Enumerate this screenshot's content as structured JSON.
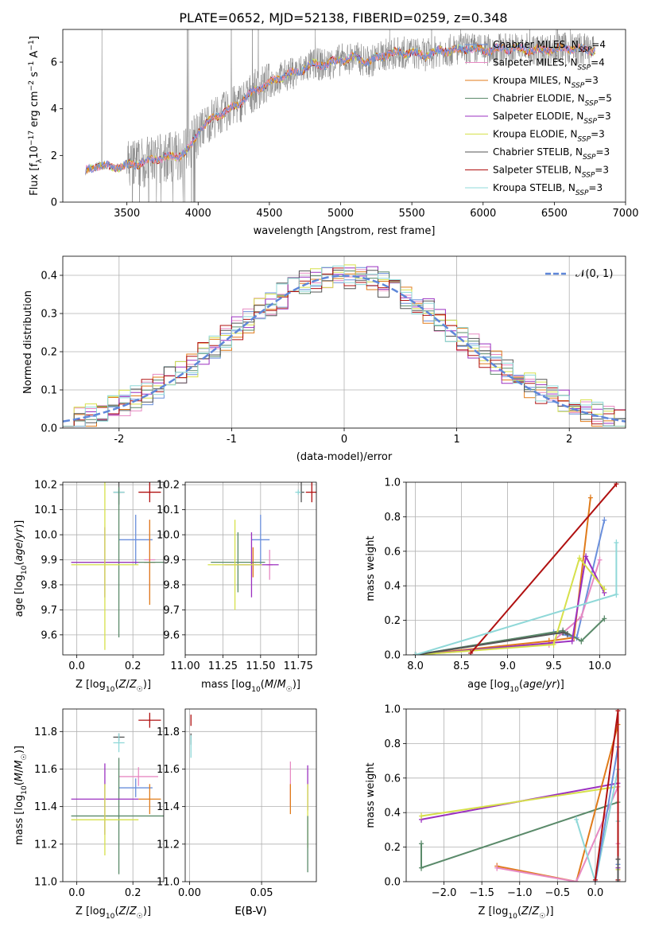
{
  "figure": {
    "title": "PLATE=0652, MJD=52138, FIBERID=0259, z=0.348"
  },
  "colors": {
    "chabrier_miles": "#6a8fdc",
    "salpeter_miles": "#e78ac3",
    "kroupa_miles": "#e07b1a",
    "chabrier_elodie": "#5a8a6a",
    "salpeter_elodie": "#9b30c0",
    "kroupa_elodie": "#d6e04a",
    "chabrier_stelib": "#555555",
    "salpeter_stelib": "#b01010",
    "kroupa_stelib": "#8fd8d8",
    "data_grey": "#808080",
    "normal_curve": "#5f87d9"
  },
  "chart_data": [
    {
      "id": "spectrum",
      "type": "line",
      "xlabel": "wavelength [Angstrom, rest frame]",
      "ylabel": "Flux [f$_{λ}$10$^{-17}$ erg cm$^{-2}$ s$^{-1}$ A$^{-1}$]",
      "ylabel_parts": [
        "Flux [f",
        "λ",
        "10",
        "−17",
        " erg cm",
        "−2",
        " s",
        "−1",
        " A",
        "−1",
        "]"
      ],
      "xlim": [
        3050,
        7000
      ],
      "ylim": [
        0,
        7.4
      ],
      "xticks": [
        3500,
        4000,
        4500,
        5000,
        5500,
        6000,
        6500,
        7000
      ],
      "yticks": [
        0,
        2,
        4,
        6
      ],
      "legend_position": "right",
      "legend": [
        {
          "imf": "Chabrier",
          "lib": "MILES",
          "n": "4",
          "color_key": "chabrier_miles"
        },
        {
          "imf": "Salpeter",
          "lib": "MILES",
          "n": "4",
          "color_key": "salpeter_miles"
        },
        {
          "imf": "Kroupa",
          "lib": "MILES",
          "n": "3",
          "color_key": "kroupa_miles"
        },
        {
          "imf": "Chabrier",
          "lib": "ELODIE",
          "n": "5",
          "color_key": "chabrier_elodie"
        },
        {
          "imf": "Salpeter",
          "lib": "ELODIE",
          "n": "3",
          "color_key": "salpeter_elodie"
        },
        {
          "imf": "Kroupa",
          "lib": "ELODIE",
          "n": "3",
          "color_key": "kroupa_elodie"
        },
        {
          "imf": "Chabrier",
          "lib": "STELIB",
          "n": "3",
          "color_key": "chabrier_stelib"
        },
        {
          "imf": "Salpeter",
          "lib": "STELIB",
          "n": "3",
          "color_key": "salpeter_stelib"
        },
        {
          "imf": "Kroupa",
          "lib": "STELIB",
          "n": "3",
          "color_key": "kroupa_stelib"
        }
      ],
      "model_continuum": {
        "x": [
          3210,
          3300,
          3400,
          3500,
          3600,
          3700,
          3800,
          3900,
          3950,
          4000,
          4100,
          4200,
          4300,
          4400,
          4500,
          4600,
          4700,
          4800,
          4900,
          5000,
          5100,
          5200,
          5300,
          5400,
          5500,
          5600,
          5700,
          5800,
          5900,
          6000,
          6200,
          6400,
          6600,
          6800
        ],
        "y": [
          1.3,
          1.6,
          1.5,
          1.55,
          1.7,
          1.85,
          1.9,
          2.1,
          2.4,
          3.0,
          3.6,
          3.9,
          4.3,
          4.8,
          5.1,
          5.4,
          5.6,
          5.9,
          5.9,
          6.1,
          6.2,
          6.0,
          6.3,
          6.4,
          6.4,
          6.3,
          6.5,
          6.5,
          6.6,
          6.5,
          6.6,
          6.5,
          6.6,
          6.5
        ]
      }
    },
    {
      "id": "residuals",
      "type": "line",
      "xlabel": "(data-model)/error",
      "ylabel": "Normed distribution",
      "xlim": [
        -2.5,
        2.5
      ],
      "ylim": [
        0,
        0.45
      ],
      "xticks": [
        -2,
        -1,
        0,
        1,
        2
      ],
      "yticks": [
        0.0,
        0.1,
        0.2,
        0.3,
        0.4
      ],
      "ytick_labels": [
        "0.0",
        "0.1",
        "0.2",
        "0.3",
        "0.4"
      ],
      "legend_position": "top-right",
      "legend": [
        {
          "label": "𝒩(0, 1)",
          "color_key": "normal_curve",
          "style": "dashed"
        }
      ]
    },
    {
      "id": "age_vs_Z",
      "type": "scatter",
      "xlabel": "Z [log₁₀(Z/Z☉)]",
      "ylabel": "age  [log₁₀(age/yr)]",
      "xlim": [
        -0.05,
        0.31
      ],
      "ylim": [
        9.52,
        10.21
      ],
      "xticks": [
        0.0,
        0.2
      ],
      "xtick_labels": [
        "0.0",
        "0.2"
      ],
      "yticks": [
        9.6,
        9.7,
        9.8,
        9.9,
        10.0,
        10.1,
        10.2
      ],
      "ytick_labels": [
        "9.6",
        "9.7",
        "9.8",
        "9.9",
        "10.0",
        "10.1",
        "10.2"
      ],
      "points": [
        {
          "x": 0.26,
          "y": 10.17,
          "xerr": 0.04,
          "yerr": 0.04,
          "color_key": "salpeter_stelib"
        },
        {
          "x": 0.15,
          "y": 10.17,
          "xerr": 0.02,
          "yerr": 0.05,
          "color_key": "chabrier_stelib"
        },
        {
          "x": 0.15,
          "y": 10.17,
          "xerr": 0.02,
          "yerr": 0.01,
          "color_key": "kroupa_stelib"
        },
        {
          "x": 0.21,
          "y": 9.98,
          "xerr": 0.06,
          "yerr": 0.1,
          "color_key": "chabrier_miles"
        },
        {
          "x": 0.26,
          "y": 9.9,
          "xerr": 0.02,
          "yerr": 0.16,
          "color_key": "salpeter_miles"
        },
        {
          "x": 0.26,
          "y": 9.89,
          "xerr": 0.02,
          "yerr": 0.17,
          "color_key": "kroupa_miles"
        },
        {
          "x": 0.15,
          "y": 9.89,
          "xerr": 0.17,
          "yerr": 0.3,
          "color_key": "chabrier_elodie"
        },
        {
          "x": 0.1,
          "y": 9.89,
          "xerr": 0.12,
          "yerr": 0.14,
          "color_key": "salpeter_elodie"
        },
        {
          "x": 0.1,
          "y": 9.88,
          "xerr": 0.12,
          "yerr": 0.34,
          "color_key": "kroupa_elodie"
        }
      ]
    },
    {
      "id": "age_vs_mass",
      "type": "scatter",
      "xlabel": "mass [log₁₀(M/M☉)]",
      "ylabel": "",
      "xlim": [
        11.0,
        11.87
      ],
      "ylim": [
        9.52,
        10.21
      ],
      "xticks": [
        11.0,
        11.25,
        11.5,
        11.75
      ],
      "xtick_labels": [
        "11.00",
        "11.25",
        "11.50",
        "11.75"
      ],
      "yticks": [
        9.6,
        9.7,
        9.8,
        9.9,
        10.0,
        10.1,
        10.2
      ],
      "ytick_labels": [
        "9.6",
        "9.7",
        "9.8",
        "9.9",
        "10.0",
        "10.1",
        "10.2"
      ],
      "points": [
        {
          "x": 11.84,
          "y": 10.17,
          "xerr": 0.04,
          "yerr": 0.04,
          "color_key": "salpeter_stelib"
        },
        {
          "x": 11.77,
          "y": 10.17,
          "xerr": 0.02,
          "yerr": 0.04,
          "color_key": "chabrier_stelib"
        },
        {
          "x": 11.75,
          "y": 10.17,
          "xerr": 0.02,
          "yerr": 0.01,
          "color_key": "kroupa_stelib"
        },
        {
          "x": 11.5,
          "y": 9.98,
          "xerr": 0.06,
          "yerr": 0.1,
          "color_key": "chabrier_miles"
        },
        {
          "x": 11.56,
          "y": 9.88,
          "xerr": 0.02,
          "yerr": 0.06,
          "color_key": "salpeter_miles"
        },
        {
          "x": 11.45,
          "y": 9.89,
          "xerr": 0.02,
          "yerr": 0.06,
          "color_key": "kroupa_miles"
        },
        {
          "x": 11.35,
          "y": 9.89,
          "xerr": 0.18,
          "yerr": 0.12,
          "color_key": "chabrier_elodie"
        },
        {
          "x": 11.44,
          "y": 9.88,
          "xerr": 0.18,
          "yerr": 0.13,
          "color_key": "salpeter_elodie"
        },
        {
          "x": 11.33,
          "y": 9.88,
          "xerr": 0.18,
          "yerr": 0.18,
          "color_key": "kroupa_elodie"
        }
      ]
    },
    {
      "id": "mass_weight_vs_age",
      "type": "line",
      "xlabel": "age  [log₁₀(age/yr)]",
      "ylabel": "mass weight",
      "xlim": [
        7.9,
        10.28
      ],
      "ylim": [
        0,
        1.0
      ],
      "xticks": [
        8.0,
        8.5,
        9.0,
        9.5,
        10.0
      ],
      "xtick_labels": [
        "8.0",
        "8.5",
        "9.0",
        "9.5",
        "10.0"
      ],
      "yticks": [
        0.0,
        0.2,
        0.4,
        0.6,
        0.8,
        1.0
      ],
      "ytick_labels": [
        "0.0",
        "0.2",
        "0.4",
        "0.6",
        "0.8",
        "1.0"
      ],
      "series": [
        {
          "color_key": "chabrier_miles",
          "x": [
            8.0,
            9.5,
            9.75,
            10.05
          ],
          "y": [
            0.0,
            0.13,
            0.1,
            0.78
          ]
        },
        {
          "color_key": "salpeter_miles",
          "x": [
            8.0,
            9.45,
            9.8,
            10.0
          ],
          "y": [
            0.0,
            0.06,
            0.22,
            0.55
          ]
        },
        {
          "color_key": "kroupa_miles",
          "x": [
            8.0,
            9.45,
            9.72,
            9.9
          ],
          "y": [
            0.0,
            0.08,
            0.1,
            0.91
          ]
        },
        {
          "color_key": "chabrier_elodie",
          "x": [
            8.0,
            9.6,
            9.8,
            10.05
          ],
          "y": [
            0.0,
            0.14,
            0.08,
            0.21
          ]
        },
        {
          "color_key": "salpeter_elodie",
          "x": [
            8.0,
            9.7,
            9.85,
            10.05
          ],
          "y": [
            0.0,
            0.08,
            0.57,
            0.36
          ]
        },
        {
          "color_key": "kroupa_elodie",
          "x": [
            8.0,
            9.5,
            9.78,
            10.05
          ],
          "y": [
            0.0,
            0.06,
            0.56,
            0.38
          ]
        },
        {
          "color_key": "chabrier_stelib",
          "x": [
            8.0,
            9.6,
            9.65
          ],
          "y": [
            0.0,
            0.13,
            0.12
          ]
        },
        {
          "color_key": "salpeter_stelib",
          "x": [
            8.6,
            10.18
          ],
          "y": [
            0.01,
            0.99
          ]
        },
        {
          "color_key": "kroupa_stelib",
          "x": [
            8.0,
            10.18,
            10.18
          ],
          "y": [
            0.0,
            0.35,
            0.65
          ]
        }
      ]
    },
    {
      "id": "mass_vs_Z",
      "type": "scatter",
      "xlabel": "Z [log₁₀(Z/Z☉)]",
      "ylabel": "mass [log₁₀(M/M☉)]",
      "xlim": [
        -0.05,
        0.31
      ],
      "ylim": [
        11.0,
        11.92
      ],
      "xticks": [
        0.0,
        0.2
      ],
      "xtick_labels": [
        "0.0",
        "0.2"
      ],
      "yticks": [
        11.0,
        11.2,
        11.4,
        11.6,
        11.8
      ],
      "ytick_labels": [
        "11.0",
        "11.2",
        "11.4",
        "11.6",
        "11.8"
      ],
      "points": [
        {
          "x": 0.26,
          "y": 11.86,
          "xerr": 0.04,
          "yerr": 0.04,
          "color_key": "salpeter_stelib"
        },
        {
          "x": 0.15,
          "y": 11.77,
          "xerr": 0.02,
          "yerr": 0.02,
          "color_key": "chabrier_stelib"
        },
        {
          "x": 0.15,
          "y": 11.74,
          "xerr": 0.02,
          "yerr": 0.05,
          "color_key": "kroupa_stelib"
        },
        {
          "x": 0.21,
          "y": 11.5,
          "xerr": 0.06,
          "yerr": 0.05,
          "color_key": "chabrier_miles"
        },
        {
          "x": 0.22,
          "y": 11.56,
          "xerr": 0.07,
          "yerr": 0.05,
          "color_key": "salpeter_miles"
        },
        {
          "x": 0.26,
          "y": 11.44,
          "xerr": 0.04,
          "yerr": 0.08,
          "color_key": "kroupa_miles"
        },
        {
          "x": 0.15,
          "y": 11.35,
          "xerr": 0.17,
          "yerr": 0.31,
          "color_key": "chabrier_elodie"
        },
        {
          "x": 0.1,
          "y": 11.44,
          "xerr": 0.12,
          "yerr": 0.19,
          "color_key": "salpeter_elodie"
        },
        {
          "x": 0.1,
          "y": 11.33,
          "xerr": 0.12,
          "yerr": 0.19,
          "color_key": "kroupa_elodie"
        }
      ]
    },
    {
      "id": "mass_vs_ebv",
      "type": "scatter",
      "xlabel": "E(B-V)",
      "ylabel": "",
      "xlim": [
        -0.003,
        0.088
      ],
      "ylim": [
        11.0,
        11.92
      ],
      "xticks": [
        0.0,
        0.05
      ],
      "xtick_labels": [
        "0.00",
        "0.05"
      ],
      "yticks": [
        11.0,
        11.2,
        11.4,
        11.6,
        11.8
      ],
      "ytick_labels": [
        "11.0",
        "11.2",
        "11.4",
        "11.6",
        "11.8"
      ],
      "points": [
        {
          "x": 0.001,
          "y": 11.86,
          "xerr": 0,
          "yerr": 0.03,
          "color_key": "salpeter_stelib"
        },
        {
          "x": 0.001,
          "y": 11.76,
          "xerr": 0,
          "yerr": 0.03,
          "color_key": "chabrier_stelib"
        },
        {
          "x": 0.001,
          "y": 11.72,
          "xerr": 0,
          "yerr": 0.06,
          "color_key": "kroupa_stelib"
        },
        {
          "x": 0.07,
          "y": 11.52,
          "xerr": 0,
          "yerr": 0.12,
          "color_key": "salpeter_miles"
        },
        {
          "x": 0.07,
          "y": 11.44,
          "xerr": 0,
          "yerr": 0.08,
          "color_key": "kroupa_miles"
        },
        {
          "x": 0.082,
          "y": 11.5,
          "xerr": 0,
          "yerr": 0.12,
          "color_key": "salpeter_elodie"
        },
        {
          "x": 0.082,
          "y": 11.35,
          "xerr": 0,
          "yerr": 0.17,
          "color_key": "kroupa_elodie"
        },
        {
          "x": 0.082,
          "y": 11.2,
          "xerr": 0,
          "yerr": 0.15,
          "color_key": "chabrier_elodie"
        }
      ]
    },
    {
      "id": "mass_weight_vs_Z",
      "type": "line",
      "xlabel": "Z [log₁₀(Z/Z☉)]",
      "ylabel": "mass weight",
      "xlim": [
        -2.5,
        0.4
      ],
      "ylim": [
        0,
        1.0
      ],
      "xticks": [
        -2.0,
        -1.5,
        -1.0,
        -0.5,
        0.0
      ],
      "xtick_labels": [
        "−2.0",
        "−1.5",
        "−1.0",
        "−0.5",
        "0.0"
      ],
      "yticks": [
        0.0,
        0.2,
        0.4,
        0.6,
        0.8,
        1.0
      ],
      "ytick_labels": [
        "0.0",
        "0.2",
        "0.4",
        "0.6",
        "0.8",
        "1.0"
      ],
      "series": [
        {
          "color_key": "salpeter_elodie",
          "x": [
            -2.3,
            0.3,
            0.3
          ],
          "y": [
            0.36,
            0.57,
            0.08
          ]
        },
        {
          "color_key": "kroupa_elodie",
          "x": [
            -2.3,
            0.3,
            0.3
          ],
          "y": [
            0.38,
            0.55,
            0.07
          ]
        },
        {
          "color_key": "chabrier_elodie",
          "x": [
            -2.3,
            -2.3,
            0.3,
            0.3
          ],
          "y": [
            0.22,
            0.08,
            0.46,
            0.13
          ]
        },
        {
          "color_key": "kroupa_miles",
          "x": [
            -1.3,
            -0.25,
            0.3
          ],
          "y": [
            0.09,
            0.0,
            0.91
          ]
        },
        {
          "color_key": "salpeter_miles",
          "x": [
            -1.3,
            -0.25,
            0.3,
            0.3
          ],
          "y": [
            0.08,
            0.0,
            0.55,
            0.22
          ]
        },
        {
          "color_key": "kroupa_stelib",
          "x": [
            -0.25,
            0.0,
            0.3,
            0.3
          ],
          "y": [
            0.36,
            0.0,
            0.65,
            0.35
          ]
        },
        {
          "color_key": "chabrier_miles",
          "x": [
            0.0,
            0.3,
            0.3
          ],
          "y": [
            0.0,
            0.78,
            0.1
          ]
        },
        {
          "color_key": "salpeter_stelib",
          "x": [
            0.0,
            0.3,
            0.3
          ],
          "y": [
            0.01,
            0.99,
            0.01
          ]
        },
        {
          "color_key": "chabrier_stelib",
          "x": [
            0.3,
            0.3
          ],
          "y": [
            0.13,
            0.0
          ]
        }
      ]
    }
  ]
}
